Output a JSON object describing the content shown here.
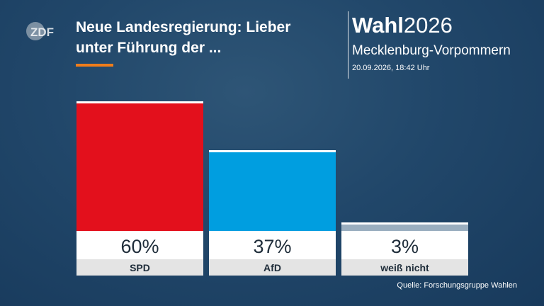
{
  "header": {
    "logo_text": "ZDF",
    "headline": "Neue Landesregierung: Lieber unter Führung der ...",
    "brand_bold": "Wahl",
    "brand_year": "2026",
    "region": "Mecklenburg-Vorpommern",
    "timestamp": "20.09.2026, 18:42 Uhr"
  },
  "footer": {
    "source": "Quelle: Forschungsgruppe Wahlen"
  },
  "colors": {
    "accent": "#f07d1b",
    "SPD": "#e3101c",
    "AfD": "#009ee0",
    "weiß nicht": "#9aaebf"
  },
  "chart_data": {
    "type": "bar",
    "categories": [
      "SPD",
      "AfD",
      "weiß nicht"
    ],
    "values": [
      60,
      37,
      3
    ],
    "value_labels": [
      "60%",
      "37%",
      "3%"
    ],
    "unit": "%",
    "ylim": [
      0,
      60
    ],
    "grid": false,
    "legend": "none"
  }
}
